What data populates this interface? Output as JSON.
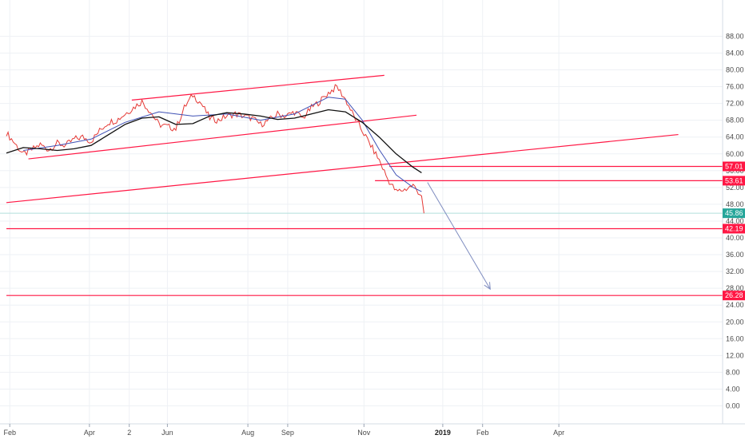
{
  "chart_data": {
    "type": "line",
    "title": "",
    "xlabel": "",
    "ylabel": "",
    "ylim": [
      -2,
      90
    ],
    "y_ticks": [
      "88.00",
      "84.00",
      "80.00",
      "76.00",
      "72.00",
      "68.00",
      "64.00",
      "60.00",
      "56.00",
      "52.00",
      "48.00",
      "44.00",
      "40.00",
      "36.00",
      "32.00",
      "28.00",
      "24.00",
      "20.00",
      "16.00",
      "12.00",
      "8.00",
      "4.00",
      "0.00"
    ],
    "x_ticks": [
      {
        "label": "Feb",
        "week": 0.4,
        "bold": false
      },
      {
        "label": "Apr",
        "week": 9.8,
        "bold": false
      },
      {
        "label": "2",
        "week": 14.5,
        "bold": false
      },
      {
        "label": "Jun",
        "week": 19.0,
        "bold": false
      },
      {
        "label": "Aug",
        "week": 28.5,
        "bold": false
      },
      {
        "label": "Sep",
        "week": 33.2,
        "bold": false
      },
      {
        "label": "Nov",
        "week": 42.2,
        "bold": false
      },
      {
        "label": "2019",
        "week": 51.5,
        "bold": true
      },
      {
        "label": "Feb",
        "week": 56.2,
        "bold": false
      },
      {
        "label": "Apr",
        "week": 65.2,
        "bold": false
      }
    ],
    "grid": true,
    "last_price": 45.86,
    "price_series": {
      "name": "",
      "weeks": [
        0,
        1,
        2,
        3,
        4,
        5,
        6,
        7,
        8,
        9,
        10,
        11,
        12,
        13,
        14,
        15,
        16,
        17,
        18,
        19,
        20,
        21,
        22,
        23,
        24,
        25,
        26,
        27,
        28,
        29,
        30,
        31,
        32,
        33,
        34,
        35,
        36,
        37,
        38,
        39,
        40,
        41,
        42,
        43,
        44,
        45,
        46,
        47,
        48,
        49
      ],
      "values": [
        65.0,
        62.5,
        59.8,
        61.0,
        62.2,
        61.0,
        62.5,
        62.0,
        63.5,
        64.0,
        63.0,
        65.5,
        67.5,
        68.0,
        69.5,
        71.0,
        72.5,
        70.0,
        67.0,
        66.5,
        66.0,
        71.0,
        74.0,
        72.0,
        68.5,
        68.0,
        69.0,
        69.5,
        69.0,
        68.5,
        67.0,
        68.0,
        69.5,
        69.0,
        70.0,
        68.5,
        71.0,
        72.5,
        74.5,
        76.0,
        73.0,
        69.0,
        65.5,
        62.0,
        58.5,
        54.0,
        51.0,
        51.5,
        52.5,
        50.0
      ]
    },
    "ema_fast": {
      "weeks": [
        2,
        6,
        10,
        14,
        18,
        22,
        26,
        30,
        34,
        38,
        40,
        42,
        44,
        46,
        48,
        49
      ],
      "values": [
        60.8,
        62.0,
        63.5,
        67.5,
        70.0,
        69.0,
        69.5,
        68.0,
        69.5,
        73.5,
        73.0,
        68.0,
        61.0,
        55.0,
        52.0,
        51.0
      ]
    },
    "ma_slow": {
      "weeks": [
        0,
        2,
        4,
        6,
        8,
        10,
        12,
        14,
        16,
        18,
        20,
        22,
        24,
        26,
        28,
        30,
        32,
        34,
        36,
        38,
        40,
        42,
        44,
        46,
        48,
        49
      ],
      "values": [
        60.2,
        61.5,
        61.2,
        60.8,
        61.2,
        62.0,
        64.5,
        67.0,
        68.5,
        68.8,
        67.0,
        67.2,
        69.0,
        69.8,
        69.5,
        69.0,
        68.2,
        68.5,
        69.5,
        70.5,
        70.0,
        67.5,
        64.0,
        60.0,
        56.8,
        55.5
      ]
    },
    "trendlines": [
      {
        "name": "channel-upper",
        "from": {
          "week": 14.8,
          "value": 72.8
        },
        "to": {
          "week": 44.6,
          "value": 78.7
        }
      },
      {
        "name": "channel-lower",
        "from": {
          "week": 2.6,
          "value": 58.8
        },
        "to": {
          "week": 48.4,
          "value": 69.2
        }
      },
      {
        "name": "long-trend",
        "from": {
          "week": 0.0,
          "value": 48.4
        },
        "to": {
          "week": 79.3,
          "value": 64.6
        }
      }
    ],
    "projection_arrow": {
      "from": {
        "week": 49.7,
        "value": 53.2
      },
      "to": {
        "week": 57.1,
        "value": 27.8
      }
    },
    "levels": [
      {
        "value": 57.01,
        "label": "57.01",
        "start_week": 45.2
      },
      {
        "value": 53.61,
        "label": "53.61",
        "start_week": 43.5
      },
      {
        "value": 42.19,
        "label": "42.19",
        "start_week": 0
      },
      {
        "value": 26.28,
        "label": "26.28",
        "start_week": 0
      }
    ],
    "colors": {
      "price": "#e53935",
      "ema_fast": "#3f51b5",
      "ma_slow": "#111111",
      "level": "#ff1744",
      "badge": "#ff1744",
      "last_price_badge": "#26a69a",
      "last_price_line": "#b2dfdb",
      "arrow": "#7e8cc0",
      "grid": "#eef1f5"
    }
  }
}
